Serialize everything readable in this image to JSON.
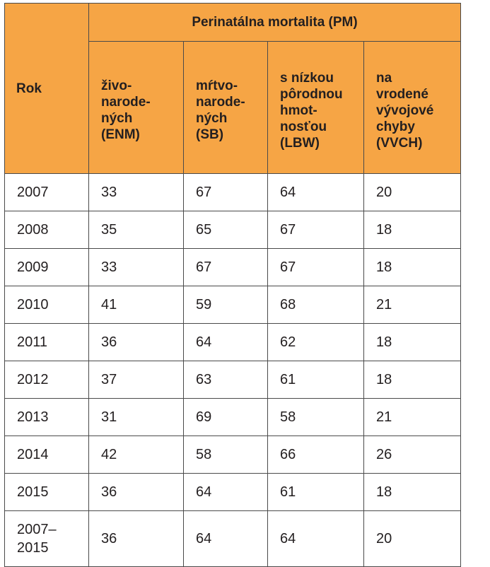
{
  "table": {
    "col_year": "Rok",
    "group_header": "Perinatálna mortalita (PM)",
    "sub_headers": [
      [
        "živo-",
        "narode-",
        "ných",
        "(ENM)"
      ],
      [
        "mŕtvo-",
        "narode-",
        "ných",
        "(SB)"
      ],
      [
        "s nízkou",
        "pôrodnou",
        "hmot-",
        "nosťou",
        "(LBW)"
      ],
      [
        "na",
        "vrodené",
        "vývojové",
        "chyby",
        "(VVCH)"
      ]
    ],
    "rows": [
      {
        "year": [
          "2007"
        ],
        "values": [
          "33",
          "67",
          "64",
          "20"
        ]
      },
      {
        "year": [
          "2008"
        ],
        "values": [
          "35",
          "65",
          "67",
          "18"
        ]
      },
      {
        "year": [
          "2009"
        ],
        "values": [
          "33",
          "67",
          "67",
          "18"
        ]
      },
      {
        "year": [
          "2010"
        ],
        "values": [
          "41",
          "59",
          "68",
          "21"
        ]
      },
      {
        "year": [
          "2011"
        ],
        "values": [
          "36",
          "64",
          "62",
          "18"
        ]
      },
      {
        "year": [
          "2012"
        ],
        "values": [
          "37",
          "63",
          "61",
          "18"
        ]
      },
      {
        "year": [
          "2013"
        ],
        "values": [
          "31",
          "69",
          "58",
          "21"
        ]
      },
      {
        "year": [
          "2014"
        ],
        "values": [
          "42",
          "58",
          "66",
          "26"
        ]
      },
      {
        "year": [
          "2015"
        ],
        "values": [
          "36",
          "64",
          "61",
          "18"
        ]
      },
      {
        "year": [
          "2007–",
          "2015"
        ],
        "values": [
          "36",
          "64",
          "64",
          "20"
        ]
      }
    ],
    "header_color": "#f6a545"
  }
}
